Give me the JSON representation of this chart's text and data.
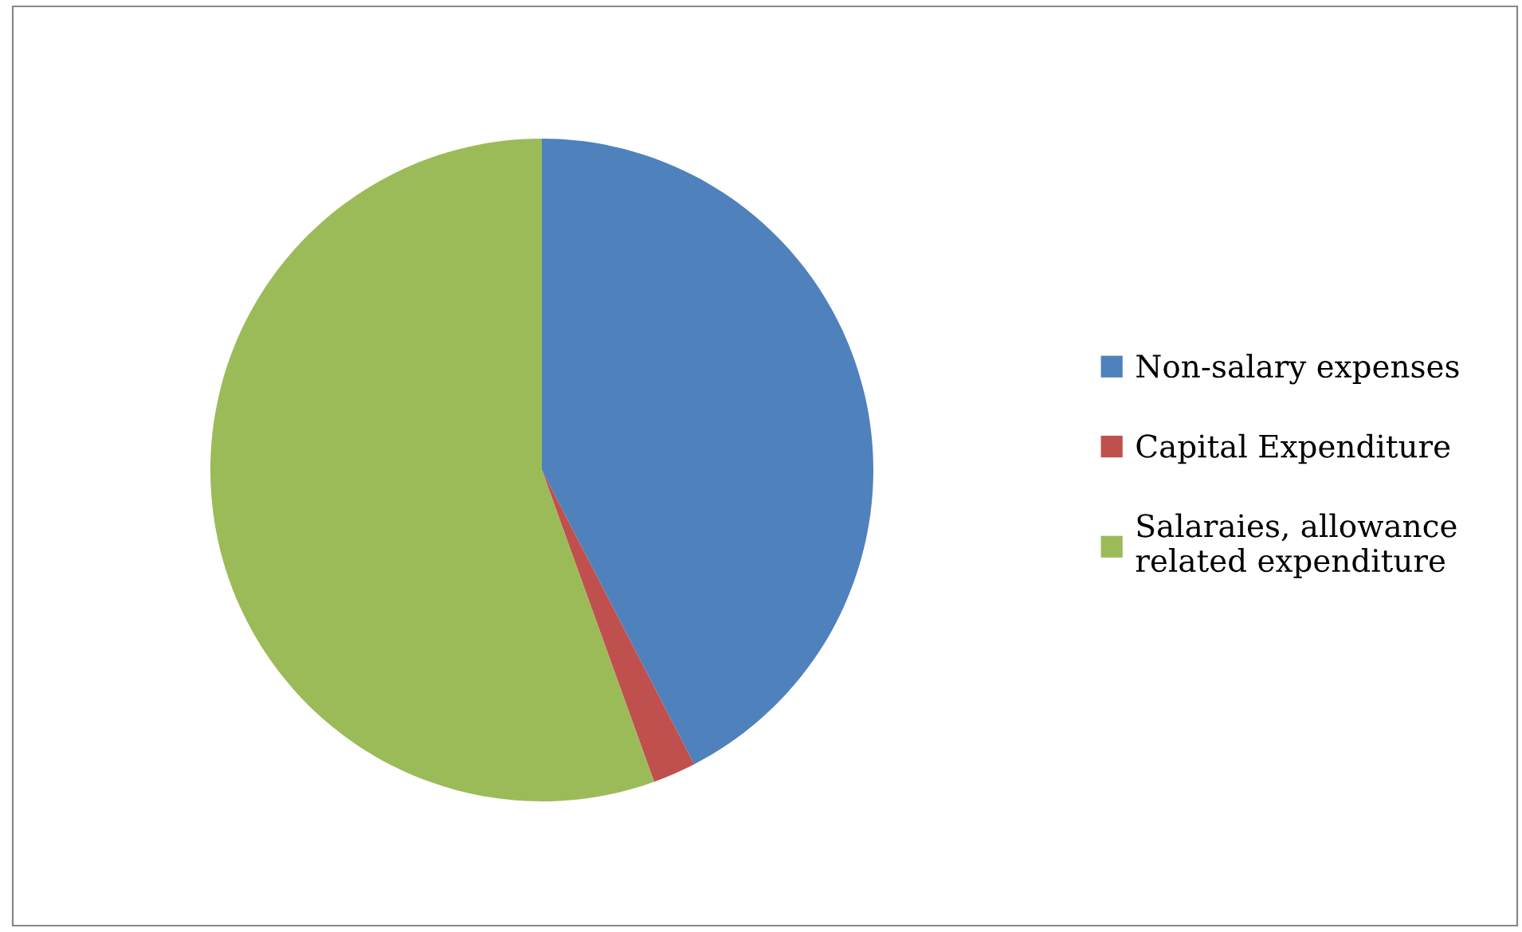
{
  "chart_data": {
    "type": "pie",
    "categories": [
      "Non-salary expenses",
      "Capital Expenditure",
      "Salaraies, allowance\nrelated expenditure"
    ],
    "values": [
      42.4,
      2.1,
      55.5
    ],
    "colors": [
      "#4f81bd",
      "#c0504d",
      "#9bbb59"
    ],
    "legend": "right"
  }
}
